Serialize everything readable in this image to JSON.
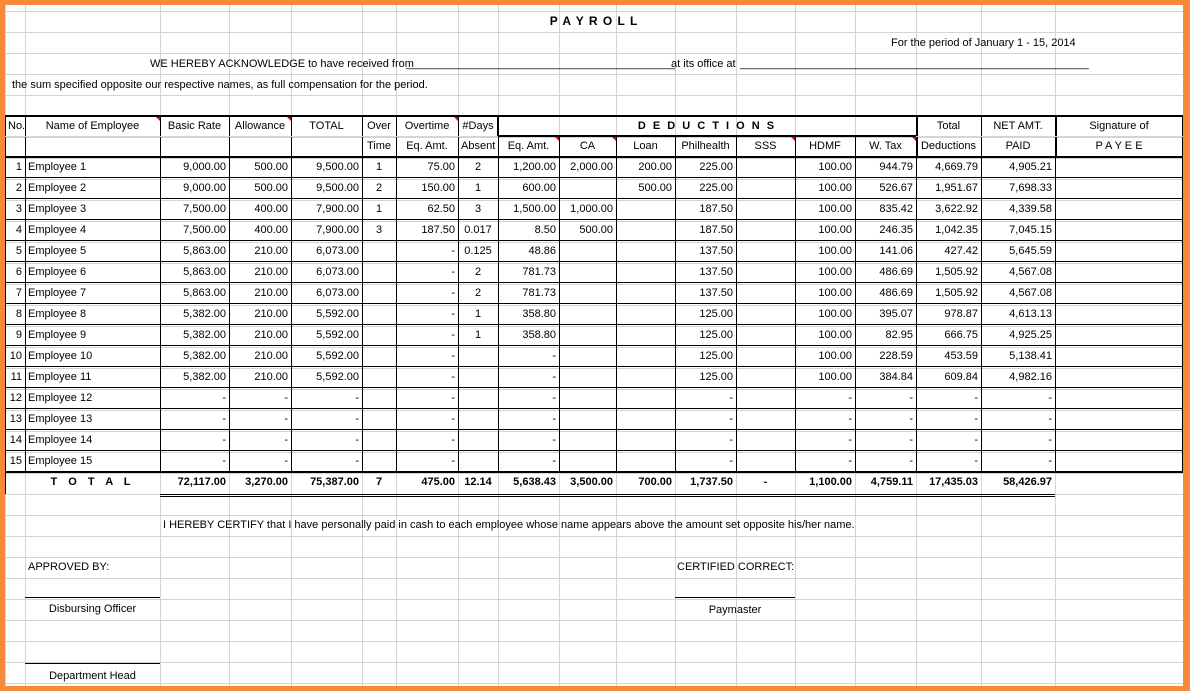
{
  "title": "P A Y R O L L",
  "period_label": "For the period of  January 1 - 15,  2014",
  "acknowledge": {
    "prefix": "WE HEREBY ACKNOWLEDGE to have received from",
    "blank1": "____________________________________________",
    "middle": "at its office at",
    "blank2": "_________________________________________________________"
  },
  "sum_text": "the sum specified opposite our respective names, as full compensation for the period.",
  "headers": {
    "no": "No.",
    "name": "Name of Employee",
    "basic": "Basic Rate",
    "allowance": "Allowance",
    "total": "TOTAL",
    "over": "Over",
    "time": "Time",
    "overtime": "Overtime",
    "ot_eq": "Eq. Amt.",
    "days": "#Days",
    "absent": "Absent",
    "deductions": "D E D U C T I O N S",
    "ded_eq": "Eq. Amt.",
    "ca": "CA",
    "loan": "Loan",
    "philhealth": "Philhealth",
    "sss": "SSS",
    "hdmf": "HDMF",
    "wtax": "W. Tax",
    "total_ded_1": "Total",
    "total_ded_2": "Deductions",
    "net_1": "NET AMT.",
    "net_2": "PAID",
    "sig_1": "Signature of",
    "sig_2": "P A Y E E"
  },
  "rows": [
    [
      "1",
      "Employee 1",
      "9,000.00",
      "500.00",
      "9,500.00",
      "1",
      "75.00",
      "2",
      "1,200.00",
      "2,000.00",
      "200.00",
      "225.00",
      "",
      "100.00",
      "944.79",
      "4,669.79",
      "4,905.21",
      ""
    ],
    [
      "2",
      "Employee 2",
      "9,000.00",
      "500.00",
      "9,500.00",
      "2",
      "150.00",
      "1",
      "600.00",
      "",
      "500.00",
      "225.00",
      "",
      "100.00",
      "526.67",
      "1,951.67",
      "7,698.33",
      ""
    ],
    [
      "3",
      "Employee 3",
      "7,500.00",
      "400.00",
      "7,900.00",
      "1",
      "62.50",
      "3",
      "1,500.00",
      "1,000.00",
      "",
      "187.50",
      "",
      "100.00",
      "835.42",
      "3,622.92",
      "4,339.58",
      ""
    ],
    [
      "4",
      "Employee 4",
      "7,500.00",
      "400.00",
      "7,900.00",
      "3",
      "187.50",
      "0.017",
      "8.50",
      "500.00",
      "",
      "187.50",
      "",
      "100.00",
      "246.35",
      "1,042.35",
      "7,045.15",
      ""
    ],
    [
      "5",
      "Employee 5",
      "5,863.00",
      "210.00",
      "6,073.00",
      "",
      "-",
      "0.125",
      "48.86",
      "",
      "",
      "137.50",
      "",
      "100.00",
      "141.06",
      "427.42",
      "5,645.59",
      ""
    ],
    [
      "6",
      "Employee 6",
      "5,863.00",
      "210.00",
      "6,073.00",
      "",
      "-",
      "2",
      "781.73",
      "",
      "",
      "137.50",
      "",
      "100.00",
      "486.69",
      "1,505.92",
      "4,567.08",
      ""
    ],
    [
      "7",
      "Employee 7",
      "5,863.00",
      "210.00",
      "6,073.00",
      "",
      "-",
      "2",
      "781.73",
      "",
      "",
      "137.50",
      "",
      "100.00",
      "486.69",
      "1,505.92",
      "4,567.08",
      ""
    ],
    [
      "8",
      "Employee 8",
      "5,382.00",
      "210.00",
      "5,592.00",
      "",
      "-",
      "1",
      "358.80",
      "",
      "",
      "125.00",
      "",
      "100.00",
      "395.07",
      "978.87",
      "4,613.13",
      ""
    ],
    [
      "9",
      "Employee 9",
      "5,382.00",
      "210.00",
      "5,592.00",
      "",
      "-",
      "1",
      "358.80",
      "",
      "",
      "125.00",
      "",
      "100.00",
      "82.95",
      "666.75",
      "4,925.25",
      ""
    ],
    [
      "10",
      "Employee 10",
      "5,382.00",
      "210.00",
      "5,592.00",
      "",
      "-",
      "",
      "-",
      "",
      "",
      "125.00",
      "",
      "100.00",
      "228.59",
      "453.59",
      "5,138.41",
      ""
    ],
    [
      "11",
      "Employee 11",
      "5,382.00",
      "210.00",
      "5,592.00",
      "",
      "-",
      "",
      "-",
      "",
      "",
      "125.00",
      "",
      "100.00",
      "384.84",
      "609.84",
      "4,982.16",
      ""
    ],
    [
      "12",
      "Employee 12",
      "-",
      "-",
      "-",
      "",
      "-",
      "",
      "-",
      "",
      "",
      "-",
      "",
      "-",
      "-",
      "-",
      "-",
      ""
    ],
    [
      "13",
      "Employee 13",
      "-",
      "-",
      "-",
      "",
      "-",
      "",
      "-",
      "",
      "",
      "-",
      "",
      "-",
      "-",
      "-",
      "-",
      ""
    ],
    [
      "14",
      "Employee 14",
      "-",
      "-",
      "-",
      "",
      "-",
      "",
      "-",
      "",
      "",
      "-",
      "",
      "-",
      "-",
      "-",
      "-",
      ""
    ],
    [
      "15",
      "Employee 15",
      "-",
      "-",
      "-",
      "",
      "-",
      "",
      "-",
      "",
      "",
      "-",
      "",
      "-",
      "-",
      "-",
      "-",
      ""
    ]
  ],
  "totals": [
    "",
    "T O T A L",
    "72,117.00",
    "3,270.00",
    "75,387.00",
    "7",
    "475.00",
    "12.14",
    "5,638.43",
    "3,500.00",
    "700.00",
    "1,737.50",
    "-",
    "1,100.00",
    "4,759.11",
    "17,435.03",
    "58,426.97",
    ""
  ],
  "certify": "I HEREBY CERTIFY  that I have personally paid in cash to each employee whose name appears above the amount set opposite his/her name.",
  "approved_by": "APPROVED BY:",
  "certified_correct": "CERTIFIED CORRECT:",
  "disbursing_officer": "Disbursing Officer",
  "paymaster": "Paymaster",
  "department_head": "Department Head",
  "colors": {
    "border": "#f58a3c",
    "grid": "#d4d4d4",
    "comment_marker": "#dd0000"
  }
}
